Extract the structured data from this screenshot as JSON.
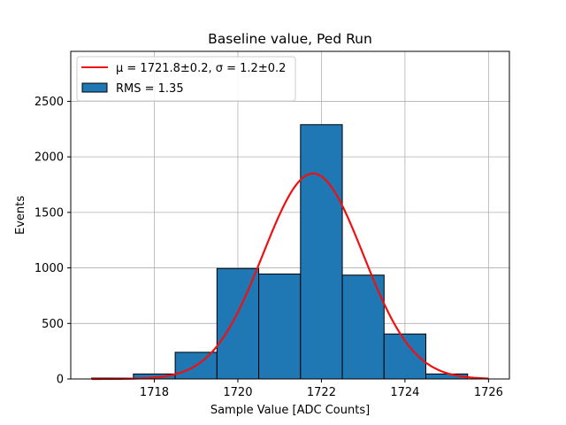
{
  "chart_data": {
    "type": "bar",
    "title": "Baseline value, Ped Run",
    "xlabel": "Sample Value [ADC Counts]",
    "ylabel": "Events",
    "xlim": [
      1716.0,
      1726.5
    ],
    "ylim": [
      0,
      2950
    ],
    "grid": true,
    "legend_position": "top-left",
    "xticks": [
      1718,
      1720,
      1722,
      1724,
      1726
    ],
    "yticks": [
      0,
      500,
      1000,
      1500,
      2000,
      2500
    ],
    "bins": [
      {
        "left": 1716.5,
        "right": 1717.5,
        "value": 8
      },
      {
        "left": 1717.5,
        "right": 1718.5,
        "value": 45
      },
      {
        "left": 1718.5,
        "right": 1719.5,
        "value": 240
      },
      {
        "left": 1719.5,
        "right": 1720.5,
        "value": 995
      },
      {
        "left": 1720.5,
        "right": 1721.5,
        "value": 945
      },
      {
        "left": 1721.5,
        "right": 1722.5,
        "value": 2290
      },
      {
        "left": 1722.5,
        "right": 1723.5,
        "value": 935
      },
      {
        "left": 1723.5,
        "right": 1724.5,
        "value": 405
      },
      {
        "left": 1724.5,
        "right": 1725.5,
        "value": 45
      }
    ],
    "fit": {
      "mu": 1721.8,
      "sigma": 1.2,
      "amplitude": 1850,
      "x_range": [
        1716.5,
        1726.0
      ]
    },
    "legend": [
      {
        "label": "μ = 1721.8±0.2, σ = 1.2±0.2",
        "kind": "line",
        "color": "#e41a1c"
      },
      {
        "label": "RMS = 1.35",
        "kind": "patch",
        "color": "#1f77b4"
      }
    ],
    "colors": {
      "bar": "#1f77b4",
      "fit": "#ee1111",
      "grid": "#b0b0b0"
    }
  }
}
